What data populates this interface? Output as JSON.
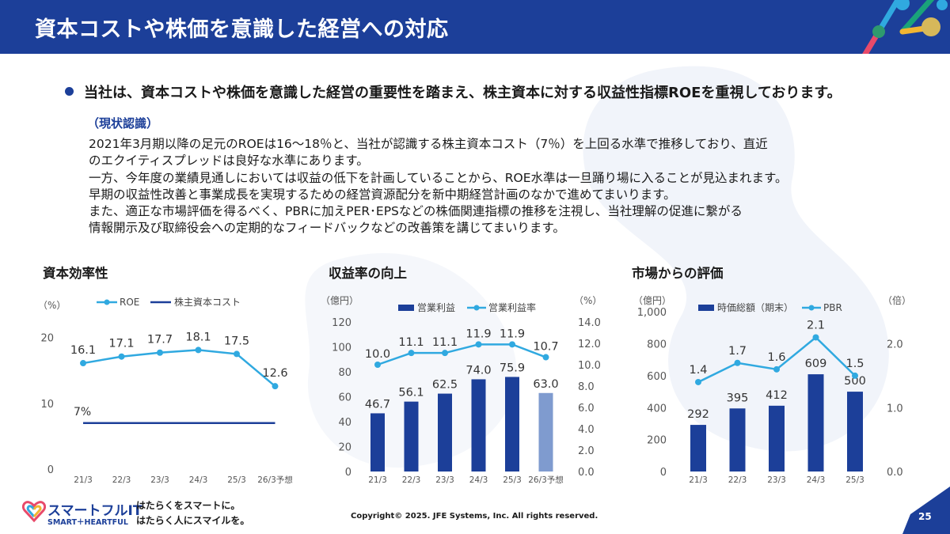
{
  "header": {
    "title": "資本コストや株価を意識した経営への対応"
  },
  "lead": "当社は、資本コストや株価を意識した経営の重要性を踏まえ、株主資本に対する収益性指標ROEを重視しております。",
  "status_label": "（現状認識）",
  "body_lines": [
    "2021年3月期以降の足元のROEは16～18％と、当社が認識する株主資本コスト（7％）を上回る水準で推移しており、直近",
    "のエクイティスプレッドは良好な水準にあります。",
    "一方、今年度の業績見通しにおいては収益の低下を計画していることから、ROE水準は一旦踊り場に入ることが見込まれます。",
    "早期の収益性改善と事業成長を実現するための経営資源配分を新中期経営計画のなかで進めてまいります。",
    "また、適正な市場評価を得るべく、PBRに加えPER･EPSなどの株価関連指標の推移を注視し、当社理解の促進に繋がる",
    "情報開示及び取締役会への定期的なフィードバックなどの改善策を講じてまいります。"
  ],
  "chart_data": [
    {
      "type": "line",
      "title": "資本効率性",
      "ylabel": "（%）",
      "categories": [
        "21/3",
        "22/3",
        "23/3",
        "24/3",
        "25/3",
        "26/3予想"
      ],
      "ylim": [
        0,
        25
      ],
      "yticks": [
        "0",
        "10",
        "20"
      ],
      "series": [
        {
          "name": "ROE",
          "values": [
            16.1,
            17.1,
            17.7,
            18.1,
            17.5,
            12.6
          ],
          "labels": [
            "16.1",
            "17.1",
            "17.7",
            "18.1",
            "17.5",
            "12.6"
          ]
        },
        {
          "name": "株主資本コスト",
          "values": [
            7,
            7,
            7,
            7,
            7,
            7
          ],
          "label": "7%"
        }
      ],
      "legend": "top",
      "colors": {
        "roe": "#30a9e0",
        "cost": "#1c3f99"
      }
    },
    {
      "type": "bar",
      "title": "収益率の向上",
      "ylabel": "（億円）",
      "y2label": "（%）",
      "categories": [
        "21/3",
        "22/3",
        "23/3",
        "24/3",
        "25/3",
        "26/3予想"
      ],
      "ylim": [
        0,
        120
      ],
      "y2lim": [
        0,
        14
      ],
      "yticks": [
        "0",
        "20",
        "40",
        "60",
        "80",
        "100",
        "120"
      ],
      "y2ticks": [
        "0.0",
        "2.0",
        "4.0",
        "6.0",
        "8.0",
        "10.0",
        "12.0",
        "14.0"
      ],
      "series": [
        {
          "name": "営業利益",
          "kind": "bar",
          "values": [
            46.7,
            56.1,
            62.5,
            74.0,
            75.9,
            63.0
          ],
          "labels": [
            "46.7",
            "56.1",
            "62.5",
            "74.0",
            "75.9",
            "63.0"
          ]
        },
        {
          "name": "営業利益率",
          "kind": "line",
          "axis": "right",
          "values": [
            10.0,
            11.1,
            11.1,
            11.9,
            11.9,
            10.7
          ],
          "labels": [
            "10.0",
            "11.1",
            "11.1",
            "11.9",
            "11.9",
            "10.7"
          ]
        }
      ],
      "legend": "top",
      "colors": {
        "bar": "#1c3f99",
        "bar_forecast": "#7f9bcf",
        "line": "#30a9e0"
      }
    },
    {
      "type": "bar",
      "title": "市場からの評価",
      "ylabel": "（億円）",
      "y2label": "（倍）",
      "categories": [
        "21/3",
        "22/3",
        "23/3",
        "24/3",
        "25/3"
      ],
      "ylim": [
        0,
        1100
      ],
      "y2lim": [
        0,
        2.75
      ],
      "yticks": [
        "0",
        "200",
        "400",
        "600",
        "800",
        "1,000"
      ],
      "y2ticks": [
        "0.0",
        "1.0",
        "2.0"
      ],
      "series": [
        {
          "name": "時価総額（期末）",
          "kind": "bar",
          "values": [
            292,
            395,
            412,
            609,
            500
          ],
          "labels": [
            "292",
            "395",
            "412",
            "609",
            "500"
          ]
        },
        {
          "name": "PBR",
          "kind": "line",
          "axis": "right",
          "values": [
            1.4,
            1.7,
            1.6,
            2.1,
            1.5
          ],
          "labels": [
            "1.4",
            "1.7",
            "1.6",
            "2.1",
            "1.5"
          ]
        }
      ],
      "legend": "top",
      "colors": {
        "bar": "#1c3f99",
        "line": "#30a9e0"
      }
    }
  ],
  "footer": {
    "logo_text": "スマートフルIT",
    "logo_sub": "SMART＋HEARTFUL",
    "tagline": [
      "はたらくをスマートに。",
      "はたらく人にスマイルを。"
    ],
    "copyright": "Copyright© 2025. JFE Systems, Inc. All rights reserved.",
    "page_number": "25"
  }
}
